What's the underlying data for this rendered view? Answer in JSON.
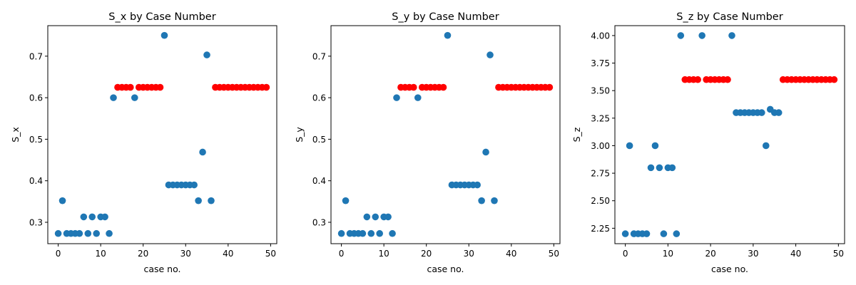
{
  "colors": {
    "base": "#1f77b4",
    "highlight": "#ff0000"
  },
  "chart_data": [
    {
      "type": "scatter",
      "title": "S_x by Case Number",
      "xlabel": "case no.",
      "ylabel": "S_x",
      "xlim": [
        -2.45,
        51.45
      ],
      "ylim": [
        0.2485,
        0.7735
      ],
      "xticks": [
        "0",
        "10",
        "20",
        "30",
        "40",
        "50"
      ],
      "yticks": [
        "0.3",
        "0.4",
        "0.5",
        "0.6",
        "0.7"
      ],
      "grid": false,
      "x": [
        0,
        1,
        2,
        3,
        4,
        5,
        6,
        7,
        8,
        9,
        10,
        11,
        12,
        13,
        14,
        15,
        16,
        17,
        18,
        19,
        20,
        21,
        22,
        23,
        24,
        25,
        26,
        27,
        28,
        29,
        30,
        31,
        32,
        33,
        34,
        35,
        36,
        37,
        38,
        39,
        40,
        41,
        42,
        43,
        44,
        45,
        46,
        47,
        48,
        49
      ],
      "y": [
        0.273,
        0.352,
        0.273,
        0.273,
        0.273,
        0.273,
        0.313,
        0.273,
        0.313,
        0.273,
        0.313,
        0.313,
        0.273,
        0.6,
        0.625,
        0.625,
        0.625,
        0.625,
        0.6,
        0.625,
        0.625,
        0.625,
        0.625,
        0.625,
        0.625,
        0.75,
        0.39,
        0.39,
        0.39,
        0.39,
        0.39,
        0.39,
        0.39,
        0.352,
        0.469,
        0.703,
        0.352,
        0.625,
        0.625,
        0.625,
        0.625,
        0.625,
        0.625,
        0.625,
        0.625,
        0.625,
        0.625,
        0.625,
        0.625,
        0.625
      ],
      "highlight": [
        0,
        0,
        0,
        0,
        0,
        0,
        0,
        0,
        0,
        0,
        0,
        0,
        0,
        0,
        1,
        1,
        1,
        1,
        0,
        1,
        1,
        1,
        1,
        1,
        1,
        0,
        0,
        0,
        0,
        0,
        0,
        0,
        0,
        0,
        0,
        0,
        0,
        1,
        1,
        1,
        1,
        1,
        1,
        1,
        1,
        1,
        1,
        1,
        1,
        1
      ]
    },
    {
      "type": "scatter",
      "title": "S_y by Case Number",
      "xlabel": "case no.",
      "ylabel": "S_y",
      "xlim": [
        -2.45,
        51.45
      ],
      "ylim": [
        0.2485,
        0.7735
      ],
      "xticks": [
        "0",
        "10",
        "20",
        "30",
        "40",
        "50"
      ],
      "yticks": [
        "0.3",
        "0.4",
        "0.5",
        "0.6",
        "0.7"
      ],
      "grid": false,
      "x": [
        0,
        1,
        2,
        3,
        4,
        5,
        6,
        7,
        8,
        9,
        10,
        11,
        12,
        13,
        14,
        15,
        16,
        17,
        18,
        19,
        20,
        21,
        22,
        23,
        24,
        25,
        26,
        27,
        28,
        29,
        30,
        31,
        32,
        33,
        34,
        35,
        36,
        37,
        38,
        39,
        40,
        41,
        42,
        43,
        44,
        45,
        46,
        47,
        48,
        49
      ],
      "y": [
        0.273,
        0.352,
        0.273,
        0.273,
        0.273,
        0.273,
        0.313,
        0.273,
        0.313,
        0.273,
        0.313,
        0.313,
        0.273,
        0.6,
        0.625,
        0.625,
        0.625,
        0.625,
        0.6,
        0.625,
        0.625,
        0.625,
        0.625,
        0.625,
        0.625,
        0.75,
        0.39,
        0.39,
        0.39,
        0.39,
        0.39,
        0.39,
        0.39,
        0.352,
        0.469,
        0.703,
        0.352,
        0.625,
        0.625,
        0.625,
        0.625,
        0.625,
        0.625,
        0.625,
        0.625,
        0.625,
        0.625,
        0.625,
        0.625,
        0.625
      ],
      "highlight": [
        0,
        0,
        0,
        0,
        0,
        0,
        0,
        0,
        0,
        0,
        0,
        0,
        0,
        0,
        1,
        1,
        1,
        1,
        0,
        1,
        1,
        1,
        1,
        1,
        1,
        0,
        0,
        0,
        0,
        0,
        0,
        0,
        0,
        0,
        0,
        0,
        0,
        1,
        1,
        1,
        1,
        1,
        1,
        1,
        1,
        1,
        1,
        1,
        1,
        1
      ]
    },
    {
      "type": "scatter",
      "title": "S_z by Case Number",
      "xlabel": "case no.",
      "ylabel": "S_z",
      "xlim": [
        -2.45,
        51.45
      ],
      "ylim": [
        2.11,
        4.09
      ],
      "xticks": [
        "0",
        "10",
        "20",
        "30",
        "40",
        "50"
      ],
      "yticks": [
        "2.25",
        "2.50",
        "2.75",
        "3.00",
        "3.25",
        "3.50",
        "3.75",
        "4.00"
      ],
      "grid": false,
      "x": [
        0,
        1,
        2,
        3,
        4,
        5,
        6,
        7,
        8,
        9,
        10,
        11,
        12,
        13,
        14,
        15,
        16,
        17,
        18,
        19,
        20,
        21,
        22,
        23,
        24,
        25,
        26,
        27,
        28,
        29,
        30,
        31,
        32,
        33,
        34,
        35,
        36,
        37,
        38,
        39,
        40,
        41,
        42,
        43,
        44,
        45,
        46,
        47,
        48,
        49
      ],
      "y": [
        2.2,
        3.0,
        2.2,
        2.2,
        2.2,
        2.2,
        2.8,
        3.0,
        2.8,
        2.2,
        2.8,
        2.8,
        2.2,
        4.0,
        3.6,
        3.6,
        3.6,
        3.6,
        4.0,
        3.6,
        3.6,
        3.6,
        3.6,
        3.6,
        3.6,
        4.0,
        3.3,
        3.3,
        3.3,
        3.3,
        3.3,
        3.3,
        3.3,
        3.0,
        3.33,
        3.3,
        3.3,
        3.6,
        3.6,
        3.6,
        3.6,
        3.6,
        3.6,
        3.6,
        3.6,
        3.6,
        3.6,
        3.6,
        3.6,
        3.6
      ],
      "highlight": [
        0,
        0,
        0,
        0,
        0,
        0,
        0,
        0,
        0,
        0,
        0,
        0,
        0,
        0,
        1,
        1,
        1,
        1,
        0,
        1,
        1,
        1,
        1,
        1,
        1,
        0,
        0,
        0,
        0,
        0,
        0,
        0,
        0,
        0,
        0,
        0,
        0,
        1,
        1,
        1,
        1,
        1,
        1,
        1,
        1,
        1,
        1,
        1,
        1,
        1
      ]
    }
  ]
}
